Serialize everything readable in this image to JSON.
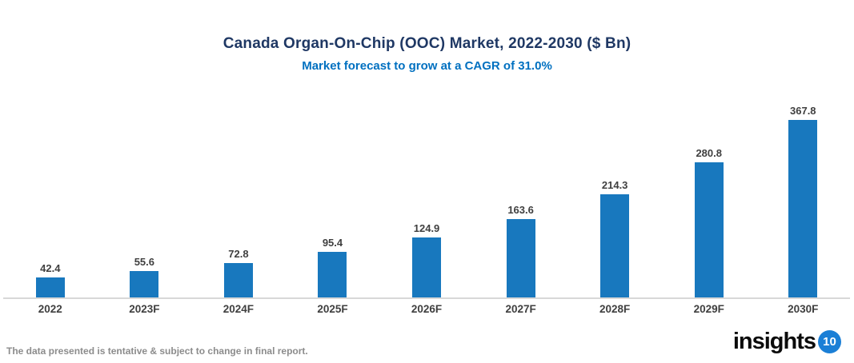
{
  "header": {
    "title": "Canada Organ-On-Chip (OOC) Market, 2022-2030 ($ Bn)",
    "subtitle": "Market forecast to grow at a CAGR of 31.0%"
  },
  "chart_data": {
    "type": "bar",
    "categories": [
      "2022",
      "2023F",
      "2024F",
      "2025F",
      "2026F",
      "2027F",
      "2028F",
      "2029F",
      "2030F"
    ],
    "values": [
      42.4,
      55.6,
      72.8,
      95.4,
      124.9,
      163.6,
      214.3,
      280.8,
      367.8
    ],
    "title": "Canada Organ-On-Chip (OOC) Market, 2022-2030 ($ Bn)",
    "subtitle": "Market forecast to grow at a CAGR of 31.0%",
    "xlabel": "",
    "ylabel": "",
    "ylim": [
      0,
      380
    ],
    "grid": false,
    "legend": false,
    "data_labels": true,
    "bar_color": "#1878BE",
    "label_color": "#3F3F3F",
    "title_color": "#1F3864",
    "subtitle_color": "#0070C0"
  },
  "footer": {
    "note": "The data presented is tentative & subject to change in final report.",
    "logo_text": "insights",
    "logo_badge": "10"
  }
}
